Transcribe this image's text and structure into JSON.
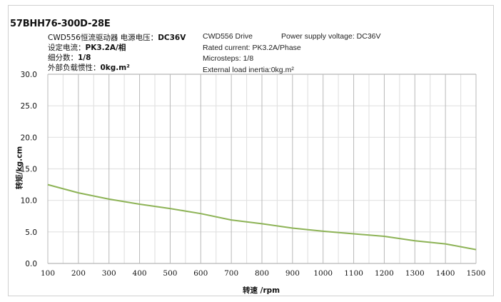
{
  "header": {
    "model": "57BHH76-300D-28E",
    "cn": {
      "line1_prefix": "CWD556恒流驱动器  电源电压：",
      "line1_value": "DC36V",
      "line2_prefix": "设定电流：",
      "line2_value": "PK3.2A/相",
      "line3_prefix": "细分数：",
      "line3_value": "1/8",
      "line4_prefix": "外部负载惯性：",
      "line4_value": "0kg.m²"
    },
    "en": {
      "drive": "CWD556 Drive",
      "voltage": "Power supply voltage: DC36V",
      "current": "Rated current: PK3.2A/Phase",
      "microsteps": "Microsteps: 1/8",
      "inertia": "External load inertia:0kg.m²"
    }
  },
  "axes": {
    "ylabel": "转矩/kg.cm",
    "xlabel": "转速 /rpm",
    "yticks": [
      "0.0",
      "5.0",
      "10.0",
      "15.0",
      "20.0",
      "25.0",
      "30.0"
    ],
    "xticks": [
      "100",
      "200",
      "300",
      "400",
      "500",
      "600",
      "700",
      "800",
      "900",
      "1000",
      "1100",
      "1200",
      "1300",
      "1400",
      "1500"
    ]
  },
  "colors": {
    "line": "#8db356",
    "grid_major": "#b8b8b8",
    "grid_minor": "#e2e2e2",
    "frame": "#d0d0d0"
  },
  "chart_data": {
    "type": "line",
    "title": "57BHH76-300D-28E",
    "xlabel": "转速 /rpm",
    "ylabel": "转矩/kg.cm",
    "x": [
      100,
      200,
      300,
      400,
      500,
      600,
      700,
      800,
      900,
      1000,
      1100,
      1200,
      1300,
      1400,
      1500
    ],
    "series": [
      {
        "name": "Torque",
        "values": [
          12.5,
          11.2,
          10.2,
          9.4,
          8.7,
          7.9,
          6.9,
          6.3,
          5.6,
          5.1,
          4.7,
          4.3,
          3.6,
          3.1,
          2.2
        ]
      }
    ],
    "xlim": [
      100,
      1500
    ],
    "ylim": [
      0,
      30
    ],
    "grid": true,
    "legend": "none"
  }
}
